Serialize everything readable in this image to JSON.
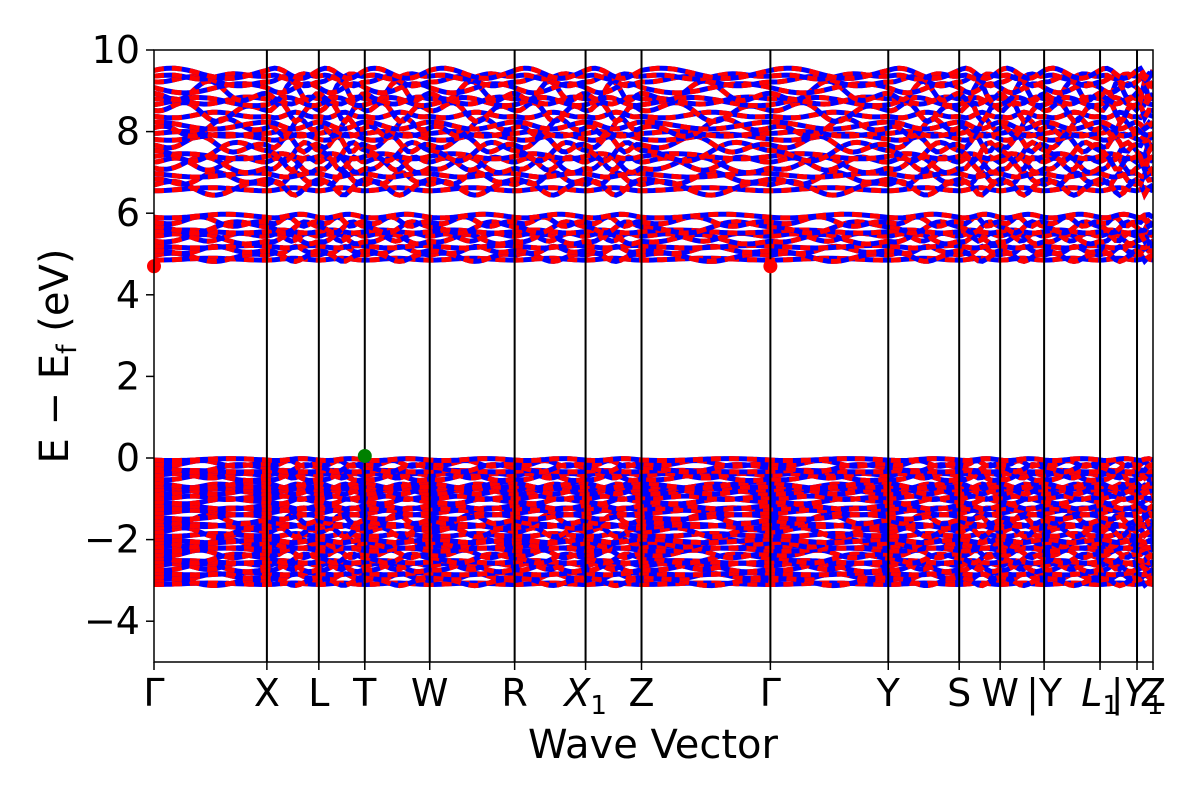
{
  "chart_data": {
    "type": "line",
    "title": "",
    "xlabel": "Wave Vector",
    "ylabel": "E − E_f (eV)",
    "ylabel_parts": {
      "main": "E − E",
      "sub": "f",
      "unit": " (eV)"
    },
    "ylim": [
      -5,
      10
    ],
    "yticks": [
      -4,
      -2,
      0,
      2,
      4,
      6,
      8,
      10
    ],
    "ytick_labels": [
      "−4",
      "−2",
      "0",
      "2",
      "4",
      "6",
      "8",
      "10"
    ],
    "kpath": [
      {
        "label": "Γ",
        "x": 0.0
      },
      {
        "label": "X",
        "x": 1.13
      },
      {
        "label": "L",
        "x": 1.65
      },
      {
        "label": "T",
        "x": 2.11
      },
      {
        "label": "W",
        "x": 2.76
      },
      {
        "label": "R",
        "x": 3.61
      },
      {
        "label": "X",
        "sub": "1",
        "x": 4.32
      },
      {
        "label": "Z",
        "x": 4.88
      },
      {
        "label": "Γ",
        "x": 6.17
      },
      {
        "label": "Y",
        "x": 7.35
      },
      {
        "label": "S",
        "x": 8.06
      },
      {
        "label": "W",
        "x": 8.47
      },
      {
        "label": "|Y",
        "x": 8.91
      },
      {
        "label": "L",
        "sub": "1",
        "x": 9.47
      },
      {
        "label": "|Y",
        "sub": "1",
        "x": 9.84
      },
      {
        "label": "Z",
        "x": 10.0
      }
    ],
    "xlim": [
      0,
      10
    ],
    "band_regions": {
      "valence": {
        "top": 0.0,
        "bottom": -3.2
      },
      "conduction_low": {
        "bottom": 4.7,
        "top": 5.9
      },
      "conduction_high": {
        "bottom": 6.2,
        "top": 9.5
      }
    },
    "series": [
      {
        "name": "",
        "color": "#ff0000"
      },
      {
        "name": "",
        "color": "#0000ff"
      }
    ],
    "markers": [
      {
        "kind": "VBM",
        "x": 2.11,
        "y": 0.05,
        "color": "#008000"
      },
      {
        "kind": "CBM",
        "x": 0.0,
        "y": 4.7,
        "color": "#ff0000"
      },
      {
        "kind": "CBM",
        "x": 6.17,
        "y": 4.7,
        "color": "#ff0000"
      }
    ],
    "grid": false
  }
}
